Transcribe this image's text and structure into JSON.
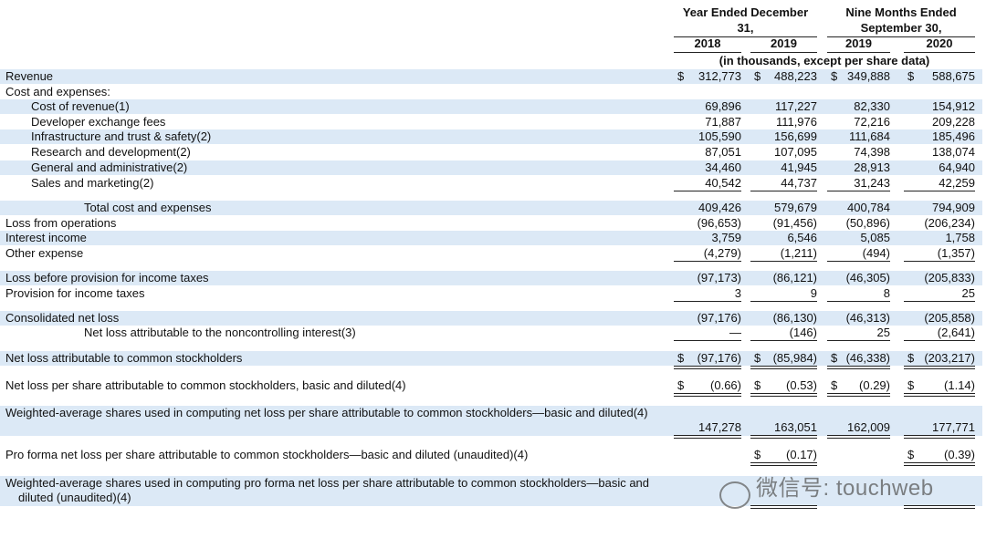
{
  "header": {
    "groups": [
      "Year Ended December 31,",
      "Nine Months Ended September 30,"
    ],
    "years": [
      "2018",
      "2019",
      "2019",
      "2020"
    ],
    "unit_note": "(in thousands, except per share data)"
  },
  "rows": [
    {
      "label": "Revenue",
      "indent": 0,
      "shaded": true,
      "prefix": "$",
      "values": [
        "312,773",
        "488,223",
        "349,888",
        "588,675"
      ]
    },
    {
      "label": "Cost and expenses:",
      "indent": 0,
      "shaded": false,
      "values": [
        null,
        null,
        null,
        null
      ]
    },
    {
      "label": "Cost of revenue(1)",
      "indent": 1,
      "shaded": true,
      "values": [
        "69,896",
        "117,227",
        "82,330",
        "154,912"
      ]
    },
    {
      "label": "Developer exchange fees",
      "indent": 1,
      "shaded": false,
      "values": [
        "71,887",
        "111,976",
        "72,216",
        "209,228"
      ]
    },
    {
      "label": "Infrastructure and trust & safety(2)",
      "indent": 1,
      "shaded": true,
      "values": [
        "105,590",
        "156,699",
        "111,684",
        "185,496"
      ]
    },
    {
      "label": "Research and development(2)",
      "indent": 1,
      "shaded": false,
      "values": [
        "87,051",
        "107,095",
        "74,398",
        "138,074"
      ]
    },
    {
      "label": "General and administrative(2)",
      "indent": 1,
      "shaded": true,
      "values": [
        "34,460",
        "41,945",
        "28,913",
        "64,940"
      ]
    },
    {
      "label": "Sales and marketing(2)",
      "indent": 1,
      "shaded": false,
      "rule": "single",
      "values": [
        "40,542",
        "44,737",
        "31,243",
        "42,259"
      ]
    },
    {
      "label": "Total cost and expenses",
      "indent": 2,
      "shaded": true,
      "values": [
        "409,426",
        "579,679",
        "400,784",
        "794,909"
      ]
    },
    {
      "label": "Loss from operations",
      "indent": 0,
      "shaded": false,
      "values": [
        "(96,653)",
        "(91,456)",
        "(50,896)",
        "(206,234)"
      ]
    },
    {
      "label": "Interest income",
      "indent": 0,
      "shaded": true,
      "values": [
        "3,759",
        "6,546",
        "5,085",
        "1,758"
      ]
    },
    {
      "label": "Other expense",
      "indent": 0,
      "shaded": false,
      "rule": "single",
      "values": [
        "(4,279)",
        "(1,211)",
        "(494)",
        "(1,357)"
      ]
    },
    {
      "label": "Loss before provision for income taxes",
      "indent": 0,
      "shaded": true,
      "values": [
        "(97,173)",
        "(86,121)",
        "(46,305)",
        "(205,833)"
      ]
    },
    {
      "label": "Provision for income taxes",
      "indent": 0,
      "shaded": false,
      "rule": "single",
      "values": [
        "3",
        "9",
        "8",
        "25"
      ]
    },
    {
      "label": "Consolidated net loss",
      "indent": 0,
      "shaded": true,
      "values": [
        "(97,176)",
        "(86,130)",
        "(46,313)",
        "(205,858)"
      ]
    },
    {
      "label": "Net loss attributable to the noncontrolling interest(3)",
      "indent": 2,
      "shaded": false,
      "rule": "single",
      "values": [
        "—",
        "(146)",
        "25",
        "(2,641)"
      ]
    },
    {
      "label": "Net loss attributable to common stockholders",
      "indent": 0,
      "shaded": true,
      "rule": "double",
      "prefix": "$",
      "values": [
        "(97,176)",
        "(85,984)",
        "(46,338)",
        "(203,217)"
      ]
    },
    {
      "label": "Net loss per share attributable to common stockholders, basic and diluted(4)",
      "indent": 0,
      "shaded": false,
      "rule": "double",
      "prefix": "$",
      "values": [
        "(0.66)",
        "(0.53)",
        "(0.29)",
        "(1.14)"
      ]
    },
    {
      "label": "Weighted-average shares used in computing net loss per share attributable to common stockholders—basic and diluted(4)",
      "indent": 0,
      "shaded": true,
      "rule": "double",
      "values": [
        "147,278",
        "163,051",
        "162,009",
        "177,771"
      ]
    },
    {
      "label": "Pro forma net loss per share attributable to common stockholders—basic and diluted (unaudited)(4)",
      "indent": 0,
      "shaded": false,
      "rule": "double",
      "prefix": "$",
      "values": [
        null,
        "(0.17)",
        null,
        "(0.39)"
      ]
    },
    {
      "label": "Weighted-average shares used in computing pro forma net loss per share attributable to common stockholders—basic and diluted (unaudited)(4)",
      "indent": 0,
      "shaded": true,
      "rule": "double",
      "values": [
        null,
        null,
        null,
        null
      ]
    }
  ],
  "watermark": "微信号: touchweb"
}
